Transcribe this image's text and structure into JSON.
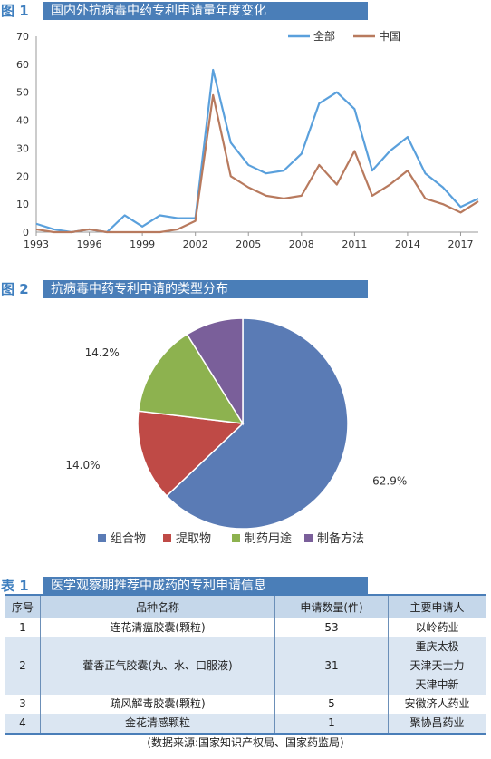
{
  "fig1": {
    "tag": "图 1",
    "title": "国内外抗病毒中药专利申请量年度变化"
  },
  "fig2": {
    "tag": "图 2",
    "title": "抗病毒中药专利申请的类型分布"
  },
  "table1": {
    "tag": "表 1",
    "title": "医学观察期推荐中成药的专利申请信息",
    "headers": [
      "序号",
      "品种名称",
      "申请数量(件)",
      "主要申请人"
    ],
    "rows": [
      {
        "no": "1",
        "name": "连花清瘟胶囊(颗粒)",
        "count": "53",
        "applicants": [
          "以岭药业"
        ]
      },
      {
        "no": "2",
        "name": "藿香正气胶囊(丸、水、口服液)",
        "count": "31",
        "applicants": [
          "重庆太极",
          "天津天士力",
          "天津中新"
        ]
      },
      {
        "no": "3",
        "name": "疏风解毒胶囊(颗粒)",
        "count": "5",
        "applicants": [
          "安徽济人药业"
        ]
      },
      {
        "no": "4",
        "name": "金花清感颗粒",
        "count": "1",
        "applicants": [
          "聚协昌药业"
        ]
      }
    ]
  },
  "source_note": "(数据来源:国家知识产权局、国家药监局)",
  "colors": {
    "series_all": "#5aa0dc",
    "series_china": "#b87a5e",
    "pie": [
      "#5a7bb5",
      "#bf4a46",
      "#8db24f",
      "#7a5f9a"
    ]
  },
  "chart_data": [
    {
      "type": "line",
      "x": [
        1993,
        1994,
        1995,
        1996,
        1997,
        1998,
        1999,
        2000,
        2001,
        2002,
        2003,
        2004,
        2005,
        2006,
        2007,
        2008,
        2009,
        2010,
        2011,
        2012,
        2013,
        2014,
        2015,
        2016,
        2017,
        2018
      ],
      "series": [
        {
          "name": "全部",
          "values": [
            3,
            1,
            0,
            1,
            0,
            6,
            2,
            6,
            5,
            5,
            58,
            32,
            24,
            21,
            22,
            28,
            46,
            50,
            44,
            22,
            29,
            34,
            21,
            16,
            9,
            12
          ]
        },
        {
          "name": "中国",
          "values": [
            1,
            0,
            0,
            1,
            0,
            0,
            0,
            0,
            1,
            4,
            49,
            20,
            16,
            13,
            12,
            13,
            24,
            17,
            29,
            13,
            17,
            22,
            12,
            10,
            7,
            11
          ]
        }
      ],
      "xticks": [
        "1993",
        "1996",
        "1999",
        "2002",
        "2005",
        "2008",
        "2011",
        "2014",
        "2017"
      ],
      "yticks": [
        "0",
        "10",
        "20",
        "30",
        "40",
        "50",
        "60",
        "70"
      ],
      "ylim": [
        0,
        70
      ],
      "legend": "top-right",
      "grid": false
    },
    {
      "type": "pie",
      "categories": [
        "组合物",
        "提取物",
        "制药用途",
        "制备方法"
      ],
      "values": [
        62.9,
        14.0,
        14.2,
        8.9
      ],
      "labels": [
        "62.9%",
        "14.0%",
        "14.2%",
        "8.9%"
      ],
      "legend": "bottom"
    }
  ]
}
